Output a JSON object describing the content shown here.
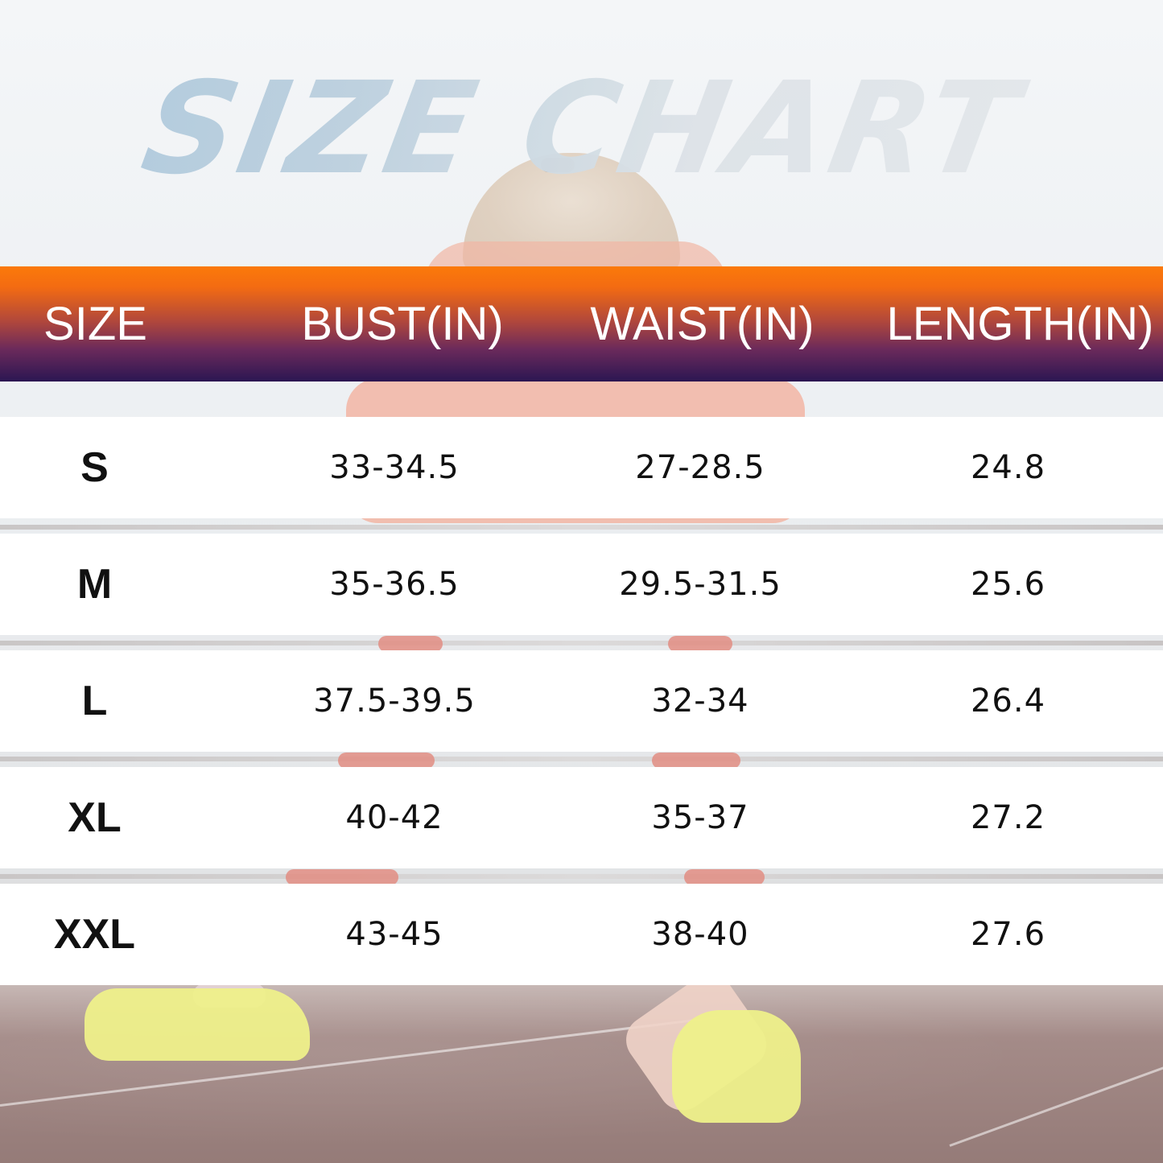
{
  "title": "SIZE CHART",
  "headers": [
    "SIZE",
    "BUST(IN)",
    "WAIST(IN)",
    "LENGTH(IN)"
  ],
  "rows": [
    {
      "size": "S",
      "bust": "33-34.5",
      "waist": "27-28.5",
      "length": "24.8"
    },
    {
      "size": "M",
      "bust": "35-36.5",
      "waist": "29.5-31.5",
      "length": "25.6"
    },
    {
      "size": "L",
      "bust": "37.5-39.5",
      "waist": "32-34",
      "length": "26.4"
    },
    {
      "size": "XL",
      "bust": "40-42",
      "waist": "35-37",
      "length": "27.2"
    },
    {
      "size": "XXL",
      "bust": "43-45",
      "waist": "38-40",
      "length": "27.6"
    }
  ],
  "colors": {
    "header_top": "#fb7a0a",
    "header_bottom": "#2b1652",
    "row_bg": "#ffffff",
    "cell_text": "#111111",
    "title_blue": "#a9c6dc"
  }
}
